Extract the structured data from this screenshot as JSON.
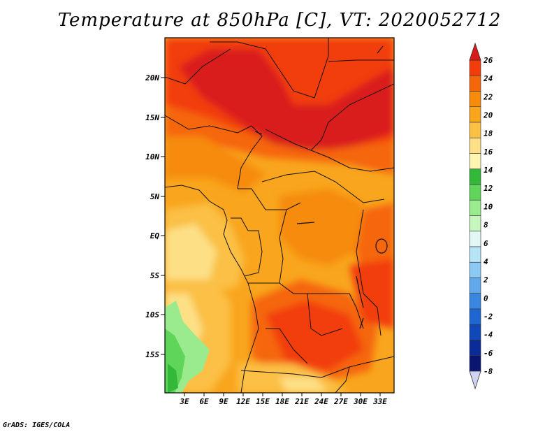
{
  "title": "Temperature at 850hPa [C], VT: 2020052712",
  "credit": "GrADS: IGES/COLA",
  "map": {
    "variable": "Temperature at 850hPa",
    "units": "C",
    "valid_time": "2020052712",
    "y_ticks": [
      "20N",
      "15N",
      "10N",
      "5N",
      "EQ",
      "5S",
      "10S",
      "15S"
    ],
    "x_ticks": [
      "3E",
      "6E",
      "9E",
      "12E",
      "15E",
      "18E",
      "21E",
      "24E",
      "27E",
      "30E",
      "33E"
    ]
  },
  "colorbar": {
    "labels": [
      "26",
      "24",
      "22",
      "20",
      "18",
      "16",
      "14",
      "12",
      "10",
      "8",
      "6",
      "4",
      "2",
      "0",
      "-2",
      "-4",
      "-6",
      "-8"
    ],
    "colors": [
      "#d91a1a",
      "#f23c0c",
      "#f5660a",
      "#f68b0c",
      "#f9a51e",
      "#fbc044",
      "#fde086",
      "#fdf6b2",
      "#33b83a",
      "#5fd65a",
      "#9aea8e",
      "#c6f5bd",
      "#e3f7f5",
      "#b8e4f7",
      "#8cc9f4",
      "#5fa8ec",
      "#3a87e2",
      "#1e66d2",
      "#1048b8",
      "#0a2c96",
      "#0a1572",
      "#cfd2f2"
    ]
  }
}
